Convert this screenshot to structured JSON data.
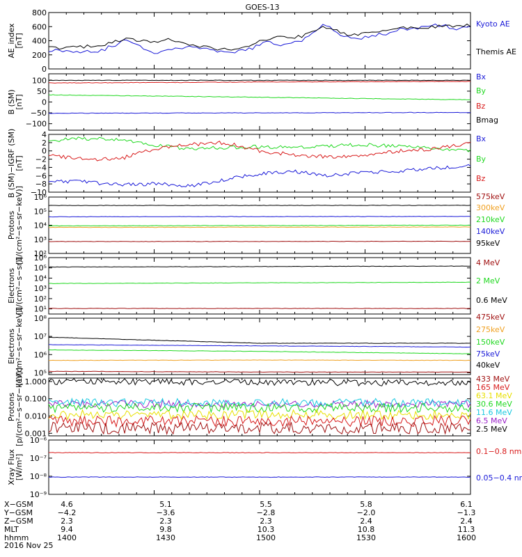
{
  "title": "GOES-13",
  "colors": {
    "black": "#000000",
    "blue": "#1a1ad8",
    "green": "#1fd81f",
    "red": "#d81a1a",
    "darkred": "#a01010",
    "orange": "#f0a020",
    "yellow": "#e8e000",
    "cyan": "#18c8e0",
    "purple": "#9a20c8"
  },
  "panels": [
    {
      "id": "ae",
      "ylabel": [
        "AE_index",
        "[nT]"
      ],
      "scale": "linear",
      "ylim": [
        0,
        800
      ],
      "yticks": [
        {
          "v": 0,
          "t": "0"
        },
        {
          "v": 200,
          "t": "200"
        },
        {
          "v": 400,
          "t": "400"
        },
        {
          "v": 600,
          "t": "600"
        },
        {
          "v": 800,
          "t": "800"
        }
      ],
      "legend": [
        {
          "name": "Kyoto AE",
          "color": "blue"
        },
        {
          "name": "Themis AE",
          "color": "black"
        }
      ]
    },
    {
      "id": "bsm",
      "ylabel": [
        "B (SM)",
        "[nT]"
      ],
      "scale": "linear",
      "ylim": [
        -130,
        130
      ],
      "yticks": [
        {
          "v": -100,
          "t": "−100"
        },
        {
          "v": -50,
          "t": "−50"
        },
        {
          "v": 0,
          "t": "0"
        },
        {
          "v": 50,
          "t": "50"
        },
        {
          "v": 100,
          "t": "100"
        }
      ],
      "legend": [
        {
          "name": "Bx",
          "color": "blue"
        },
        {
          "name": "By",
          "color": "green"
        },
        {
          "name": "Bz",
          "color": "red"
        },
        {
          "name": "Bmag",
          "color": "black"
        }
      ]
    },
    {
      "id": "bigrf",
      "ylabel": [
        "B (SM)−IGRF (SM)",
        "[nT]"
      ],
      "scale": "linear",
      "ylim": [
        -10,
        4
      ],
      "yticks": [
        {
          "v": -10,
          "t": "−10"
        },
        {
          "v": -8,
          "t": "−8"
        },
        {
          "v": -6,
          "t": "−6"
        },
        {
          "v": -4,
          "t": "−4"
        },
        {
          "v": -2,
          "t": "−2"
        },
        {
          "v": 0,
          "t": "0"
        },
        {
          "v": 2,
          "t": "2"
        },
        {
          "v": 4,
          "t": "4"
        }
      ],
      "legend": [
        {
          "name": "Bx",
          "color": "blue"
        },
        {
          "name": "By",
          "color": "green"
        },
        {
          "name": "Bz",
          "color": "red"
        }
      ]
    },
    {
      "id": "protons_hi",
      "ylabel": [
        "Protons",
        "[1/(cm²−s−sr−keV)]"
      ],
      "scale": "log",
      "ylim": [
        2,
        6
      ],
      "yticks": [
        {
          "v": 2,
          "t": "10²"
        },
        {
          "v": 3,
          "t": "10³"
        },
        {
          "v": 4,
          "t": "10⁴"
        },
        {
          "v": 5,
          "t": "10⁵"
        },
        {
          "v": 6,
          "t": "10⁶"
        }
      ],
      "legend": [
        {
          "name": "575keV",
          "color": "darkred"
        },
        {
          "name": "300keV",
          "color": "orange"
        },
        {
          "name": "210keV",
          "color": "green"
        },
        {
          "name": "140keV",
          "color": "blue"
        },
        {
          "name": "95keV",
          "color": "black"
        }
      ]
    },
    {
      "id": "electrons_mev",
      "ylabel": [
        "Electrons",
        "[1/(cm²−s−sr)]"
      ],
      "scale": "log",
      "ylim": [
        0.5,
        6
      ],
      "yticks": [
        {
          "v": 1,
          "t": "10¹"
        },
        {
          "v": 2,
          "t": "10²"
        },
        {
          "v": 3,
          "t": "10³"
        },
        {
          "v": 4,
          "t": "10⁴"
        },
        {
          "v": 5,
          "t": "10⁵"
        },
        {
          "v": 6,
          "t": "10⁶"
        }
      ],
      "legend": [
        {
          "name": "4 MeV",
          "color": "darkred"
        },
        {
          "name": "2 MeV",
          "color": "green"
        },
        {
          "name": "0.6 MeV",
          "color": "black"
        }
      ]
    },
    {
      "id": "electrons_kev",
      "ylabel": [
        "Electrons",
        "[1/(cm²−s−sr−keV)]"
      ],
      "scale": "log",
      "ylim": [
        4.9,
        8
      ],
      "yticks": [
        {
          "v": 5,
          "t": "10⁵"
        },
        {
          "v": 6,
          "t": "10⁶"
        },
        {
          "v": 7,
          "t": "10⁷"
        },
        {
          "v": 8,
          "t": "10⁸"
        }
      ],
      "legend": [
        {
          "name": "475keV",
          "color": "darkred"
        },
        {
          "name": "275keV",
          "color": "orange"
        },
        {
          "name": "150keV",
          "color": "green"
        },
        {
          "name": "75keV",
          "color": "blue"
        },
        {
          "name": "40keV",
          "color": "black"
        }
      ]
    },
    {
      "id": "protons_mev",
      "ylabel": [
        "Protons",
        "[p/(cm²−s−sr−keV)]"
      ],
      "scale": "log",
      "ylim": [
        -3.15,
        0.2
      ],
      "yticks": [
        {
          "v": -3,
          "t": "0.001"
        },
        {
          "v": -2,
          "t": "0.010"
        },
        {
          "v": -1,
          "t": "0.100"
        },
        {
          "v": 0,
          "t": "1.000"
        }
      ],
      "legend": [
        {
          "name": "433 MeV",
          "color": "darkred"
        },
        {
          "name": "165 MeV",
          "color": "red"
        },
        {
          "name": "63.1 MeV",
          "color": "yellow"
        },
        {
          "name": "30.6 MeV",
          "color": "green"
        },
        {
          "name": "11.6 MeV",
          "color": "cyan"
        },
        {
          "name": "6.5 MeV",
          "color": "purple"
        },
        {
          "name": "2.5 MeV",
          "color": "black"
        }
      ]
    },
    {
      "id": "xray",
      "ylabel": [
        "Xray Flux",
        "[W/m²]"
      ],
      "scale": "log",
      "ylim": [
        -9,
        -6
      ],
      "yticks": [
        {
          "v": -9,
          "t": "10⁻⁹"
        },
        {
          "v": -8,
          "t": "10⁻⁸"
        },
        {
          "v": -7,
          "t": "10⁻⁷"
        },
        {
          "v": -6,
          "t": "10⁻⁶"
        }
      ],
      "legend": [
        {
          "name": "0.1−0.8 nm",
          "color": "red"
        },
        {
          "name": "0.05−0.4 nm",
          "color": "blue"
        }
      ]
    }
  ],
  "xaxis": {
    "rows": [
      {
        "label": "X−GSM",
        "values": [
          "4.6",
          "5.1",
          "5.5",
          "5.8",
          "6.1"
        ]
      },
      {
        "label": "Y−GSM",
        "values": [
          "−4.2",
          "−3.6",
          "−2.8",
          "−2.0",
          "−1.3"
        ]
      },
      {
        "label": "Z−GSM",
        "values": [
          "2.3",
          "2.3",
          "2.3",
          "2.4",
          "2.4"
        ]
      },
      {
        "label": "MLT",
        "values": [
          "9.4",
          "9.8",
          "10.3",
          "10.8",
          "11.3"
        ]
      },
      {
        "label": "hhmm",
        "values": [
          "1400",
          "1430",
          "1500",
          "1530",
          "1600"
        ]
      }
    ],
    "date": "2016 Nov 25"
  },
  "chart_data": {
    "type": "line",
    "title": "GOES-13",
    "x_time_hhmm": [
      "1400",
      "1430",
      "1500",
      "1530",
      "1600"
    ],
    "panels": [
      {
        "id": "ae",
        "ylabel": "AE_index [nT]",
        "scale": "linear",
        "ylim": [
          0,
          800
        ],
        "series": [
          {
            "name": "Kyoto AE",
            "color": "blue",
            "x": [
              0,
              8,
              15,
              22,
              30,
              34,
              40,
              46,
              52,
              58,
              62,
              66,
              72,
              78,
              84,
              88,
              92,
              96,
              100,
              104,
              108,
              112,
              116,
              120
            ],
            "y": [
              270,
              250,
              260,
              410,
              230,
              270,
              330,
              260,
              220,
              300,
              380,
              330,
              400,
              640,
              450,
              430,
              480,
              500,
              560,
              570,
              620,
              620,
              560,
              600
            ]
          },
          {
            "name": "Themis AE",
            "color": "black",
            "x": [
              0,
              8,
              15,
              22,
              30,
              34,
              40,
              46,
              52,
              58,
              62,
              66,
              72,
              78,
              84,
              88,
              92,
              96,
              100,
              104,
              108,
              112,
              116,
              120
            ],
            "y": [
              300,
              300,
              340,
              420,
              380,
              420,
              350,
              300,
              270,
              340,
              420,
              450,
              460,
              610,
              500,
              480,
              520,
              540,
              580,
              580,
              590,
              600,
              610,
              620
            ]
          }
        ]
      },
      {
        "id": "bsm",
        "ylabel": "B (SM) [nT]",
        "scale": "linear",
        "ylim": [
          -130,
          130
        ],
        "series": [
          {
            "name": "Bmag",
            "color": "black",
            "x": [
              0,
              120
            ],
            "y": [
              100,
              100
            ]
          },
          {
            "name": "Bz",
            "color": "red",
            "x": [
              0,
              60,
              120
            ],
            "y": [
              88,
              92,
              95
            ]
          },
          {
            "name": "By",
            "color": "green",
            "x": [
              0,
              60,
              120
            ],
            "y": [
              33,
              22,
              10
            ]
          },
          {
            "name": "Bx",
            "color": "blue",
            "x": [
              0,
              60,
              120
            ],
            "y": [
              -52,
              -50,
              -48
            ]
          }
        ]
      },
      {
        "id": "bigrf",
        "ylabel": "B (SM)−IGRF (SM) [nT]",
        "scale": "linear",
        "ylim": [
          -10,
          4
        ],
        "series": [
          {
            "name": "By",
            "color": "green",
            "x": [
              0,
              10,
              20,
              30,
              40,
              50,
              60,
              70,
              80,
              90,
              100,
              110,
              120
            ],
            "y": [
              2.5,
              3.0,
              2.8,
              1.5,
              0.5,
              0.8,
              1.0,
              1.0,
              1.2,
              1.5,
              1.0,
              0.5,
              0.0
            ]
          },
          {
            "name": "Bz",
            "color": "red",
            "x": [
              0,
              10,
              20,
              30,
              40,
              50,
              60,
              70,
              80,
              90,
              100,
              110,
              120
            ],
            "y": [
              -1.0,
              -2.0,
              -2.0,
              0.5,
              1.5,
              2.0,
              0.0,
              -1.0,
              -1.5,
              -1.0,
              0.0,
              0.5,
              2.0
            ]
          },
          {
            "name": "Bx",
            "color": "blue",
            "x": [
              0,
              10,
              20,
              30,
              40,
              50,
              60,
              70,
              80,
              90,
              100,
              110,
              120
            ],
            "y": [
              -7.5,
              -7.5,
              -8.2,
              -8.0,
              -8.5,
              -7.0,
              -5.5,
              -5.0,
              -6.0,
              -5.2,
              -4.8,
              -4.2,
              -3.5
            ]
          }
        ]
      },
      {
        "id": "protons_hi",
        "ylabel": "Protons [1/(cm²−s−sr−keV)]",
        "scale": "log",
        "ylim": [
          100,
          1000000
        ],
        "series": [
          {
            "name": "95keV",
            "color": "black",
            "x": [
              0,
              120
            ],
            "y": [
              250000,
              260000
            ]
          },
          {
            "name": "140keV",
            "color": "blue",
            "x": [
              0,
              120
            ],
            "y": [
              40000,
              42000
            ]
          },
          {
            "name": "210keV",
            "color": "green",
            "x": [
              0,
              120
            ],
            "y": [
              9000,
              10000
            ]
          },
          {
            "name": "300keV",
            "color": "orange",
            "x": [
              0,
              120
            ],
            "y": [
              7000,
              7500
            ]
          },
          {
            "name": "575keV",
            "color": "darkred",
            "x": [
              0,
              120
            ],
            "y": [
              700,
              720
            ]
          }
        ]
      },
      {
        "id": "electrons_mev",
        "ylabel": "Electrons [1/(cm²−s−sr)]",
        "scale": "log",
        "ylim": [
          3,
          1000000
        ],
        "series": [
          {
            "name": "0.6 MeV",
            "color": "black",
            "x": [
              0,
              120
            ],
            "y": [
              120000,
              150000
            ]
          },
          {
            "name": "2 MeV",
            "color": "green",
            "x": [
              0,
              120
            ],
            "y": [
              3000,
              4000
            ]
          },
          {
            "name": "4 MeV",
            "color": "darkred",
            "x": [
              0,
              120
            ],
            "y": [
              11,
              11
            ]
          }
        ]
      },
      {
        "id": "electrons_kev",
        "ylabel": "Electrons [1/(cm²−s−sr−keV)]",
        "scale": "log",
        "ylim": [
          80000,
          100000000
        ],
        "series": [
          {
            "name": "40keV",
            "color": "black",
            "x": [
              0,
              60,
              120
            ],
            "y": [
              9000000,
              4200000,
              4200000
            ]
          },
          {
            "name": "75keV",
            "color": "blue",
            "x": [
              0,
              60,
              120
            ],
            "y": [
              3500000,
              3000000,
              2600000
            ]
          },
          {
            "name": "150keV",
            "color": "green",
            "x": [
              0,
              60,
              120
            ],
            "y": [
              1800000,
              1500000,
              1100000
            ]
          },
          {
            "name": "275keV",
            "color": "orange",
            "x": [
              0,
              60,
              120
            ],
            "y": [
              480000,
              500000,
              480000
            ]
          },
          {
            "name": "475keV",
            "color": "darkred",
            "x": [
              0,
              60,
              120
            ],
            "y": [
              120000,
              110000,
              110000
            ]
          }
        ]
      },
      {
        "id": "protons_mev",
        "ylabel": "Protons [p/(cm²−s−sr−keV)]",
        "scale": "log",
        "ylim": [
          0.0007,
          1.6
        ],
        "series": [
          {
            "name": "2.5 MeV",
            "color": "black",
            "x": [
              0,
              120
            ],
            "y": [
              1.0,
              0.8
            ]
          },
          {
            "name": "6.5 MeV",
            "color": "purple",
            "x": [
              0,
              120
            ],
            "y": [
              0.05,
              0.05
            ]
          },
          {
            "name": "11.6 MeV",
            "color": "cyan",
            "x": [
              0,
              120
            ],
            "y": [
              0.06,
              0.06
            ]
          },
          {
            "name": "30.6 MeV",
            "color": "green",
            "x": [
              0,
              120
            ],
            "y": [
              0.03,
              0.03
            ]
          },
          {
            "name": "63.1 MeV",
            "color": "yellow",
            "x": [
              0,
              120
            ],
            "y": [
              0.012,
              0.012
            ]
          },
          {
            "name": "165 MeV",
            "color": "red",
            "x": [
              0,
              120
            ],
            "y": [
              0.005,
              0.005
            ]
          },
          {
            "name": "433 MeV",
            "color": "darkred",
            "x": [
              0,
              120
            ],
            "y": [
              0.002,
              0.002
            ]
          }
        ]
      },
      {
        "id": "xray",
        "ylabel": "Xray Flux [W/m²]",
        "scale": "log",
        "ylim": [
          1e-09,
          1e-06
        ],
        "series": [
          {
            "name": "0.1−0.8 nm",
            "color": "red",
            "x": [
              0,
              120
            ],
            "y": [
              2e-07,
              2e-07
            ]
          },
          {
            "name": "0.05−0.4 nm",
            "color": "blue",
            "x": [
              0,
              120
            ],
            "y": [
              9e-09,
              9e-09
            ]
          }
        ]
      }
    ]
  }
}
